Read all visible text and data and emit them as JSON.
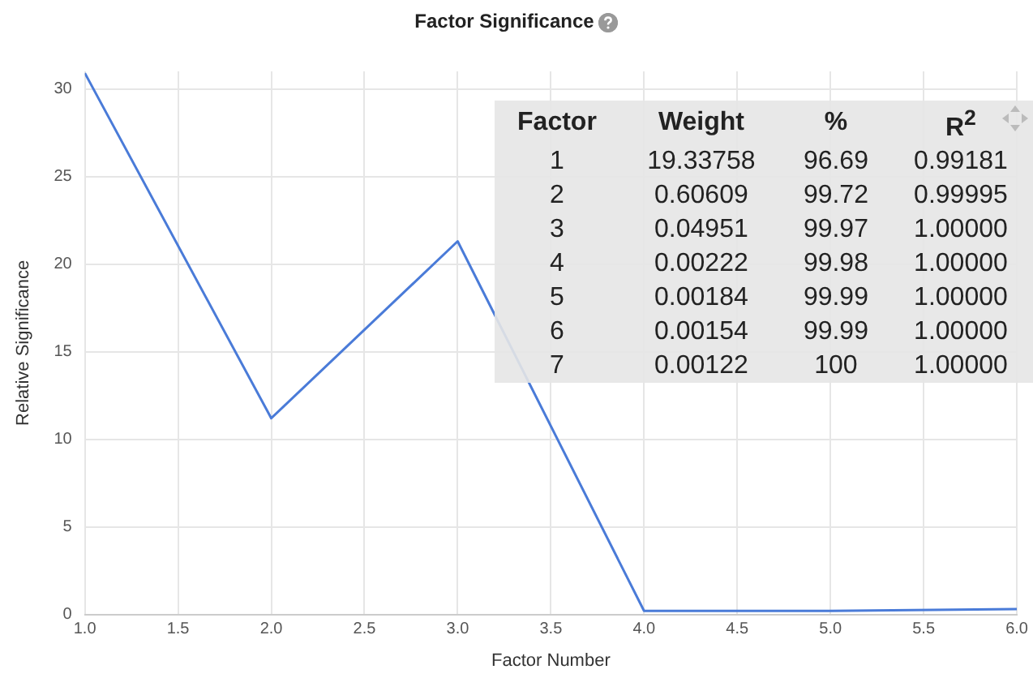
{
  "chart_data": {
    "type": "line",
    "title": "Factor Significance",
    "xlabel": "Factor Number",
    "ylabel": "Relative Significance",
    "x": [
      1,
      2,
      3,
      4,
      5,
      6
    ],
    "series": [
      {
        "color": "#4a7bd8",
        "values": [
          30.9,
          11.2,
          21.3,
          0.2,
          0.2,
          0.3
        ]
      }
    ],
    "xlim": [
      1,
      6
    ],
    "xticks": [
      {
        "value": 1,
        "label": "1.0"
      },
      {
        "value": 1.5,
        "label": "1.5"
      },
      {
        "value": 2,
        "label": "2.0"
      },
      {
        "value": 2.5,
        "label": "2.5"
      },
      {
        "value": 3,
        "label": "3.0"
      },
      {
        "value": 3.5,
        "label": "3.5"
      },
      {
        "value": 4,
        "label": "4.0"
      },
      {
        "value": 4.5,
        "label": "4.5"
      },
      {
        "value": 5,
        "label": "5.0"
      },
      {
        "value": 5.5,
        "label": "5.5"
      },
      {
        "value": 6,
        "label": "6.0"
      }
    ],
    "ylim": [
      0,
      31
    ],
    "yticks": [
      0,
      5,
      10,
      15,
      20,
      25,
      30
    ],
    "grid": true,
    "legend": false,
    "marker": "none",
    "line_style": "solid",
    "annotations": [
      "Factor",
      "Weight",
      "%",
      "R$^{2}$",
      "1",
      "19.33758",
      "96.69",
      "0.99181",
      "2",
      "0.60609",
      "99.72",
      "0.99995",
      "3",
      "0.04951",
      "99.97",
      "1.00000",
      "4",
      "0.00222",
      "99.98",
      "1.00000",
      "5",
      "0.00184",
      "99.99",
      "1.00000",
      "6",
      "0.00154",
      "99.99",
      "1.00000",
      "7",
      "0.00122",
      "100",
      "1.00000"
    ]
  }
}
